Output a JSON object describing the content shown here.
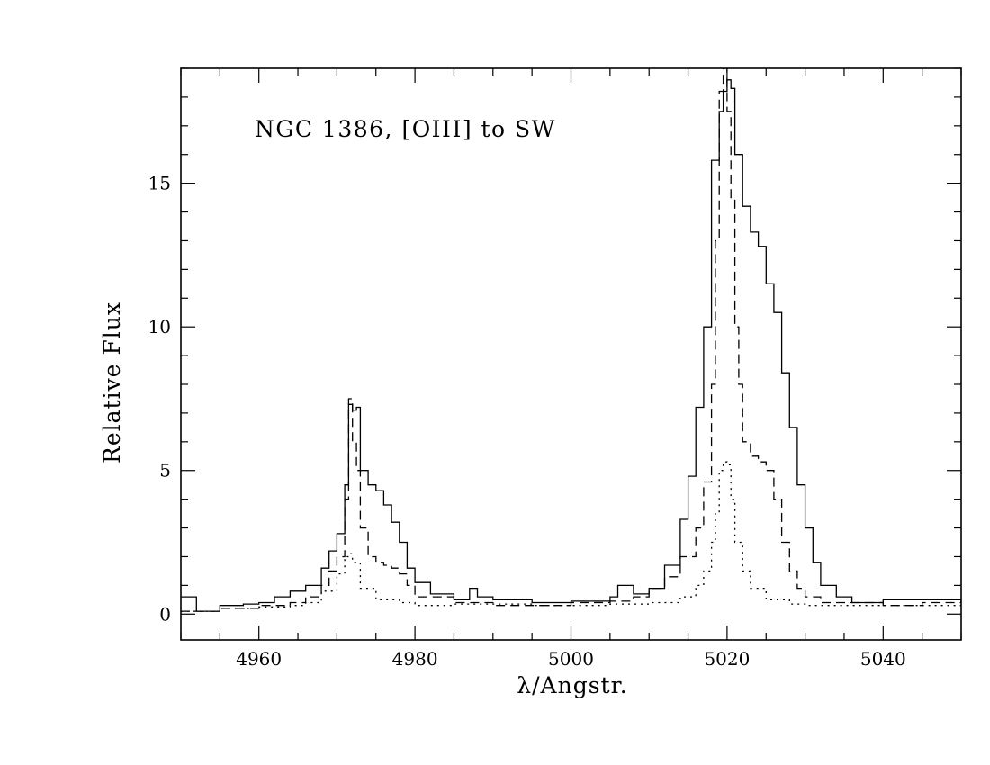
{
  "chart_data": {
    "type": "line",
    "title": "NGC 1386, [OIII] to SW",
    "xlabel": "λ/Angstr.",
    "ylabel": "Relative Flux",
    "xlim": [
      4950,
      5050
    ],
    "ylim": [
      -0.9,
      19
    ],
    "xticks": [
      4960,
      4980,
      5000,
      5020,
      5040
    ],
    "yticks": [
      0,
      5,
      10,
      15
    ],
    "x_minor_step": 5,
    "y_minor_step": 1,
    "grid": false,
    "legend": "none",
    "series": [
      {
        "style": "solid",
        "x": [
          4950,
          4952,
          4955,
          4958,
          4960,
          4962,
          4964,
          4966,
          4968,
          4969,
          4970,
          4971,
          4971.5,
          4972,
          4972.5,
          4973,
          4974,
          4975,
          4976,
          4977,
          4978,
          4979,
          4980,
          4982,
          4985,
          4987,
          4988,
          4990,
          4995,
          5000,
          5005,
          5006,
          5008,
          5010,
          5012,
          5014,
          5015,
          5016,
          5017,
          5018,
          5019,
          5019.5,
          5020,
          5020.5,
          5021,
          5022,
          5023,
          5024,
          5025,
          5026,
          5027,
          5028,
          5029,
          5030,
          5031,
          5032,
          5034,
          5036,
          5040,
          5045,
          5050
        ],
        "y": [
          0.6,
          0.1,
          0.3,
          0.35,
          0.4,
          0.6,
          0.8,
          1.0,
          1.6,
          2.2,
          2.8,
          4.5,
          7.3,
          7.1,
          7.2,
          5.0,
          4.5,
          4.3,
          3.8,
          3.2,
          2.5,
          1.6,
          1.1,
          0.7,
          0.5,
          0.9,
          0.6,
          0.5,
          0.4,
          0.45,
          0.6,
          1.0,
          0.7,
          0.9,
          1.7,
          3.3,
          4.8,
          7.2,
          10.0,
          15.8,
          17.5,
          18.2,
          18.6,
          18.3,
          16.0,
          14.2,
          13.3,
          12.8,
          11.5,
          10.5,
          8.4,
          6.5,
          4.5,
          3.0,
          1.8,
          1.0,
          0.6,
          0.4,
          0.5,
          0.5,
          0.4
        ]
      },
      {
        "style": "dashed",
        "x": [
          4950,
          4955,
          4960,
          4964,
          4966,
          4968,
          4969,
          4970,
          4971,
          4971.5,
          4972,
          4972.5,
          4973,
          4974,
          4975,
          4976,
          4977,
          4978,
          4979,
          4980,
          4985,
          4990,
          4995,
          5000,
          5005,
          5008,
          5010,
          5012,
          5014,
          5016,
          5017,
          5018,
          5018.5,
          5019,
          5019.5,
          5020,
          5020.5,
          5021,
          5021.5,
          5022,
          5023,
          5024,
          5025,
          5026,
          5027,
          5028,
          5029,
          5030,
          5032,
          5035,
          5040,
          5045,
          5050
        ],
        "y": [
          0.1,
          0.2,
          0.3,
          0.4,
          0.6,
          1.0,
          1.5,
          2.0,
          4.0,
          7.5,
          6.0,
          5.0,
          3.0,
          2.0,
          1.8,
          1.7,
          1.6,
          1.4,
          1.0,
          0.6,
          0.4,
          0.3,
          0.3,
          0.4,
          0.45,
          0.6,
          0.9,
          1.3,
          2.0,
          3.0,
          4.6,
          8.0,
          13.0,
          18.2,
          19.0,
          17.5,
          14.5,
          10.0,
          8.0,
          6.0,
          5.5,
          5.3,
          5.0,
          4.0,
          2.5,
          1.5,
          0.9,
          0.6,
          0.4,
          0.4,
          0.3,
          0.4,
          0.5
        ]
      },
      {
        "style": "dotted",
        "x": [
          4950,
          4955,
          4960,
          4964,
          4966,
          4968,
          4970,
          4971,
          4971.5,
          4972,
          4973,
          4975,
          4978,
          4980,
          4985,
          4990,
          4995,
          5000,
          5005,
          5010,
          5014,
          5016,
          5017,
          5018,
          5018.5,
          5019,
          5019.5,
          5020,
          5020.5,
          5021,
          5022,
          5023,
          5025,
          5028,
          5030,
          5035,
          5040,
          5045,
          5050
        ],
        "y": [
          0.1,
          0.2,
          0.25,
          0.3,
          0.4,
          0.8,
          1.4,
          2.0,
          2.1,
          1.8,
          0.9,
          0.5,
          0.4,
          0.3,
          0.35,
          0.35,
          0.3,
          0.3,
          0.35,
          0.4,
          0.6,
          1.0,
          1.5,
          2.5,
          3.5,
          5.0,
          5.3,
          5.2,
          4.0,
          2.5,
          1.5,
          0.9,
          0.5,
          0.35,
          0.3,
          0.3,
          0.3,
          0.3,
          0.3
        ]
      }
    ]
  }
}
